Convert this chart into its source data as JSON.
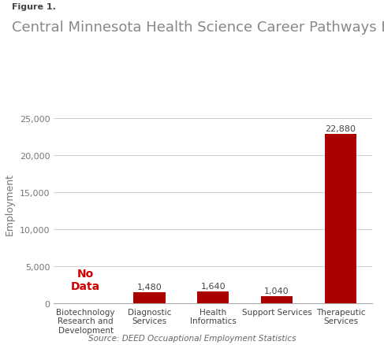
{
  "figure_label": "Figure 1.",
  "title": "Central Minnesota Health Science Career Pathways Employment",
  "categories": [
    "Biotechnology\nResearch and\nDevelopment",
    "Diagnostic\nServices",
    "Health\nInformatics",
    "Support Services",
    "Therapeutic\nServices"
  ],
  "values": [
    0,
    1480,
    1640,
    1040,
    22880
  ],
  "no_data_index": 0,
  "bar_color": "#AA0000",
  "no_data_color": "#CC0000",
  "bar_labels": [
    "",
    "1,480",
    "1,640",
    "1,040",
    "22,880"
  ],
  "no_data_text": "No\nData",
  "ylabel": "Employment",
  "ylim": [
    0,
    27000
  ],
  "yticks": [
    0,
    5000,
    10000,
    15000,
    20000,
    25000
  ],
  "ytick_labels": [
    "0",
    "5,000",
    "10,000",
    "15,000",
    "20,000",
    "25,000"
  ],
  "source_text": "Source: DEED Occuaptional Employment Statistics",
  "bg_color": "#ffffff",
  "grid_color": "#cccccc",
  "title_fontsize": 13,
  "figure_label_fontsize": 8,
  "bar_label_fontsize": 8,
  "ylabel_fontsize": 9,
  "source_fontsize": 7.5,
  "tick_label_fontsize": 8,
  "xtick_fontsize": 7.5
}
